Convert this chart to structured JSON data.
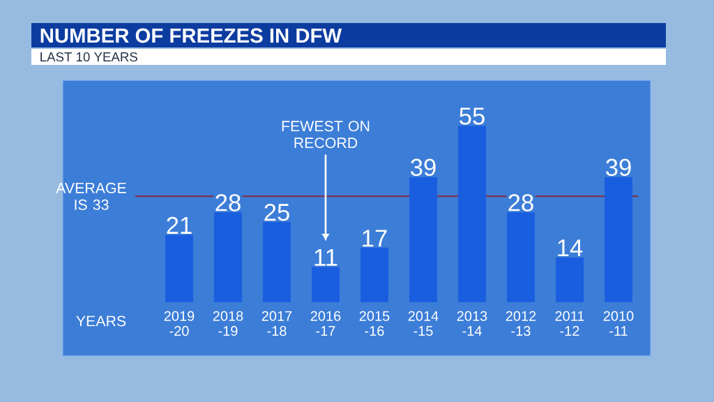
{
  "chart_data": {
    "type": "bar",
    "title": "NUMBER OF FREEZES IN DFW",
    "subtitle": "LAST 10 YEARS",
    "xlabel": "YEARS",
    "categories": [
      "2019 -20",
      "2018 -19",
      "2017 -18",
      "2016 -17",
      "2015 -16",
      "2014 -15",
      "2013 -14",
      "2012 -13",
      "2011 -12",
      "2010 -11"
    ],
    "values": [
      21,
      28,
      25,
      11,
      17,
      39,
      55,
      28,
      14,
      39
    ],
    "color": "#1a5ee0",
    "data_labels": true,
    "ref_lines": [
      {
        "axis": "y",
        "value": 33,
        "label": "AVERAGE IS 33",
        "color": "#8b2942"
      }
    ],
    "annotations": [
      "FEWEST ON RECORD"
    ]
  }
}
